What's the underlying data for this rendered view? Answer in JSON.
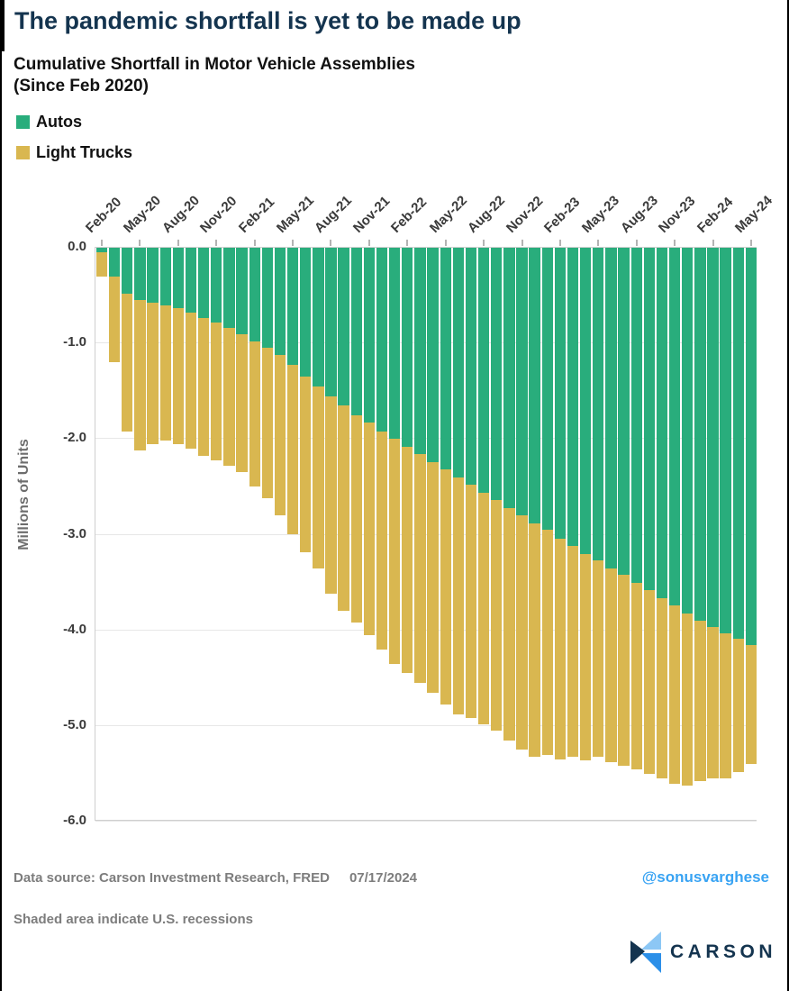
{
  "header": {
    "title": "The pandemic shortfall is yet to be made up"
  },
  "chart": {
    "subtitle_line1": "Cumulative Shortfall in Motor Vehicle Assemblies",
    "subtitle_line2": "(Since Feb 2020)",
    "y_axis_title": "Millions of Units"
  },
  "legend": {
    "items": [
      {
        "label": "Autos",
        "color": "#29ad7c"
      },
      {
        "label": "Light Trucks",
        "color": "#d9b750"
      }
    ]
  },
  "chart_data": {
    "type": "bar",
    "stacked": true,
    "title": "Cumulative Shortfall in Motor Vehicle Assemblies (Since Feb 2020)",
    "xlabel": "",
    "ylabel": "Millions of Units",
    "ylim": [
      -6.0,
      0.0
    ],
    "grid": true,
    "legend_position": "top-left",
    "y_ticks": [
      "0.0",
      "-1.0",
      "-2.0",
      "-3.0",
      "-4.0",
      "-5.0",
      "-6.0"
    ],
    "x_tick_every": 3,
    "categories": [
      "Feb-20",
      "Mar-20",
      "Apr-20",
      "May-20",
      "Jun-20",
      "Jul-20",
      "Aug-20",
      "Sep-20",
      "Oct-20",
      "Nov-20",
      "Dec-20",
      "Jan-21",
      "Feb-21",
      "Mar-21",
      "Apr-21",
      "May-21",
      "Jun-21",
      "Jul-21",
      "Aug-21",
      "Sep-21",
      "Oct-21",
      "Nov-21",
      "Dec-21",
      "Jan-22",
      "Feb-22",
      "Mar-22",
      "Apr-22",
      "May-22",
      "Jun-22",
      "Jul-22",
      "Aug-22",
      "Sep-22",
      "Oct-22",
      "Nov-22",
      "Dec-22",
      "Jan-23",
      "Feb-23",
      "Mar-23",
      "Apr-23",
      "May-23",
      "Jun-23",
      "Jul-23",
      "Aug-23",
      "Sep-23",
      "Oct-23",
      "Nov-23",
      "Dec-23",
      "Jan-24",
      "Feb-24",
      "Mar-24",
      "Apr-24",
      "May-24"
    ],
    "series": [
      {
        "name": "Autos",
        "color": "#29ad7c",
        "values": [
          -0.05,
          -0.3,
          -0.48,
          -0.55,
          -0.57,
          -0.6,
          -0.63,
          -0.68,
          -0.73,
          -0.78,
          -0.84,
          -0.9,
          -0.98,
          -1.05,
          -1.12,
          -1.22,
          -1.35,
          -1.45,
          -1.55,
          -1.65,
          -1.75,
          -1.83,
          -1.92,
          -2.0,
          -2.08,
          -2.16,
          -2.24,
          -2.32,
          -2.4,
          -2.48,
          -2.56,
          -2.64,
          -2.72,
          -2.8,
          -2.88,
          -2.95,
          -3.04,
          -3.12,
          -3.2,
          -3.27,
          -3.35,
          -3.42,
          -3.5,
          -3.58,
          -3.66,
          -3.74,
          -3.82,
          -3.9,
          -3.97,
          -4.03,
          -4.09,
          -4.15
        ]
      },
      {
        "name": "Light Trucks",
        "color": "#d9b750",
        "values": [
          -0.25,
          -0.9,
          -1.44,
          -1.57,
          -1.48,
          -1.42,
          -1.42,
          -1.42,
          -1.45,
          -1.44,
          -1.44,
          -1.45,
          -1.52,
          -1.57,
          -1.68,
          -1.78,
          -1.83,
          -1.9,
          -2.07,
          -2.15,
          -2.17,
          -2.22,
          -2.28,
          -2.35,
          -2.37,
          -2.39,
          -2.41,
          -2.46,
          -2.48,
          -2.44,
          -2.42,
          -2.41,
          -2.43,
          -2.45,
          -2.44,
          -2.35,
          -2.31,
          -2.2,
          -2.16,
          -2.05,
          -2.03,
          -2.0,
          -1.95,
          -1.92,
          -1.89,
          -1.86,
          -1.8,
          -1.68,
          -1.58,
          -1.52,
          -1.39,
          -1.25
        ]
      }
    ]
  },
  "footer": {
    "source_label": "Data source: Carson Investment Research, FRED",
    "date": "07/17/2024",
    "handle": "@sonusvarghese",
    "note": "Shaded area indicate U.S. recessions",
    "logo_text": "CARSON",
    "logo_colors": {
      "light": "#8cc7f5",
      "mid": "#2b8fe8",
      "dark": "#14344f"
    }
  }
}
